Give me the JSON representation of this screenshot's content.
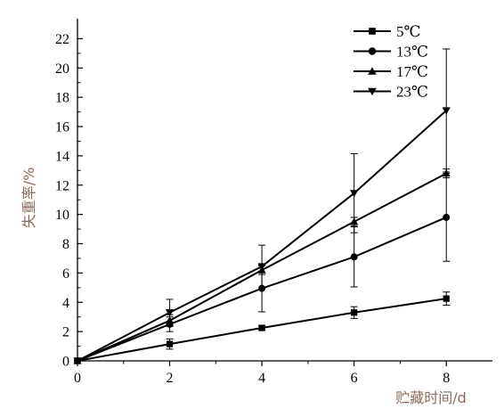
{
  "chart_data": {
    "type": "line",
    "title": "",
    "xlabel": "贮藏时间/d",
    "ylabel": "失重率/%",
    "xlim": [
      0,
      9
    ],
    "ylim": [
      0,
      23
    ],
    "x_ticks": [
      0,
      2,
      4,
      6,
      8
    ],
    "y_ticks": [
      0,
      2,
      4,
      6,
      8,
      10,
      12,
      14,
      16,
      18,
      20,
      22
    ],
    "grid": false,
    "legend_position": "top-right",
    "axis_color": "#000000",
    "label_color": "#8b6b5b",
    "x": [
      0,
      2,
      4,
      6,
      8
    ],
    "series": [
      {
        "name": "5℃",
        "marker": "square",
        "values": [
          0,
          1.15,
          2.25,
          3.3,
          4.25
        ],
        "errors": [
          0,
          0.35,
          0.15,
          0.4,
          0.45
        ]
      },
      {
        "name": "13℃",
        "marker": "circle",
        "values": [
          0,
          2.5,
          4.95,
          7.1,
          9.8
        ],
        "errors": [
          0,
          0.5,
          1.6,
          2.05,
          3.0
        ]
      },
      {
        "name": "17℃",
        "marker": "triangle-up",
        "values": [
          0,
          2.75,
          6.2,
          9.5,
          12.8
        ],
        "errors": [
          0,
          0.4,
          0.3,
          0.3,
          0.3
        ]
      },
      {
        "name": "23℃",
        "marker": "triangle-down",
        "values": [
          0,
          3.3,
          6.45,
          11.45,
          17.1
        ],
        "errors": [
          0,
          0.9,
          1.45,
          2.7,
          4.2
        ]
      }
    ]
  }
}
